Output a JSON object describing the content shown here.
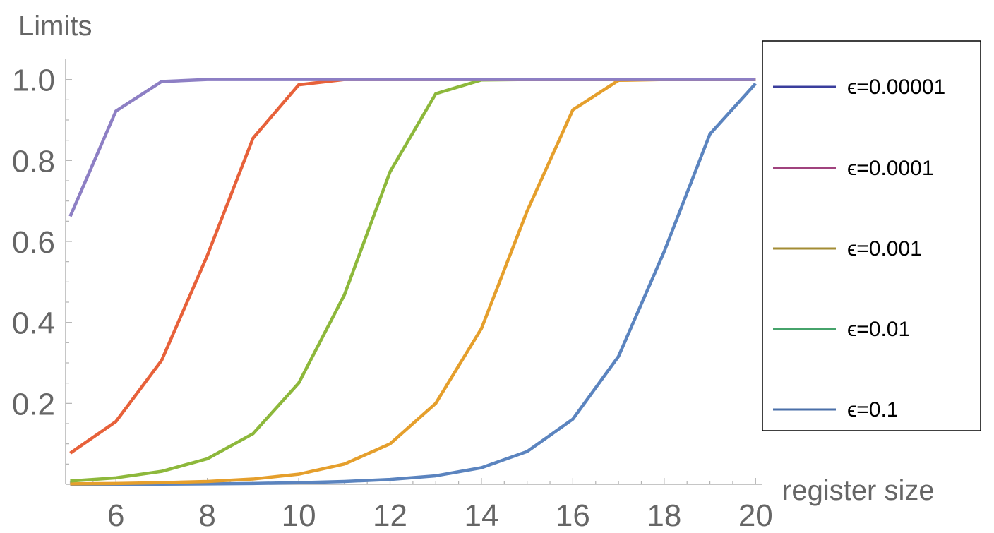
{
  "chart_data": {
    "type": "line",
    "ylabel": "Limits",
    "xlabel": "register size",
    "xlim": [
      4.9,
      20.15
    ],
    "ylim": [
      0,
      1.05
    ],
    "x_ticks": [
      6,
      8,
      10,
      12,
      14,
      16,
      18,
      20
    ],
    "y_ticks": [
      0.2,
      0.4,
      0.6,
      0.8,
      1.0
    ],
    "y_tick_labels": [
      "0.2",
      "0.4",
      "0.6",
      "0.8",
      "1.0"
    ],
    "legend_placement": "right",
    "grid": false,
    "x": [
      5,
      6,
      7,
      8,
      9,
      10,
      11,
      12,
      13,
      14,
      15,
      16,
      17,
      18,
      19,
      20
    ],
    "series": [
      {
        "name": "ϵ=0.1",
        "legend_color": "#4a6fa8",
        "color": "#5b84bf",
        "values": [
          0.0001,
          0.0002,
          0.0005,
          0.001,
          0.002,
          0.004,
          0.007,
          0.012,
          0.021,
          0.041,
          0.081,
          0.161,
          0.316,
          0.575,
          0.865,
          0.99
        ]
      },
      {
        "name": "ϵ=0.01",
        "legend_color": "#46a36b",
        "color": "#e59f2c",
        "values": [
          0.001,
          0.002,
          0.004,
          0.007,
          0.013,
          0.025,
          0.05,
          0.1,
          0.2,
          0.385,
          0.675,
          0.925,
          0.998,
          1.0,
          1.0,
          1.0
        ]
      },
      {
        "name": "ϵ=0.001",
        "legend_color": "#a38c34",
        "color": "#8db83b",
        "values": [
          0.008,
          0.016,
          0.032,
          0.063,
          0.125,
          0.25,
          0.468,
          0.772,
          0.965,
          0.999,
          1.0,
          1.0,
          1.0,
          1.0,
          1.0,
          1.0
        ]
      },
      {
        "name": "ϵ=0.0001",
        "legend_color": "#a0437e",
        "color": "#e7613a",
        "values": [
          0.077,
          0.155,
          0.306,
          0.565,
          0.855,
          0.987,
          1.0,
          1.0,
          1.0,
          1.0,
          1.0,
          1.0,
          1.0,
          1.0,
          1.0,
          1.0
        ]
      },
      {
        "name": "ϵ=0.00001",
        "legend_color": "#3a3d9c",
        "color": "#8d7fc4",
        "values": [
          0.662,
          0.922,
          0.995,
          1.0,
          1.0,
          1.0,
          1.0,
          1.0,
          1.0,
          1.0,
          1.0,
          1.0,
          1.0,
          1.0,
          1.0,
          1.0
        ]
      }
    ],
    "legend_order": [
      "ϵ=0.00001",
      "ϵ=0.0001",
      "ϵ=0.001",
      "ϵ=0.01",
      "ϵ=0.1"
    ]
  }
}
